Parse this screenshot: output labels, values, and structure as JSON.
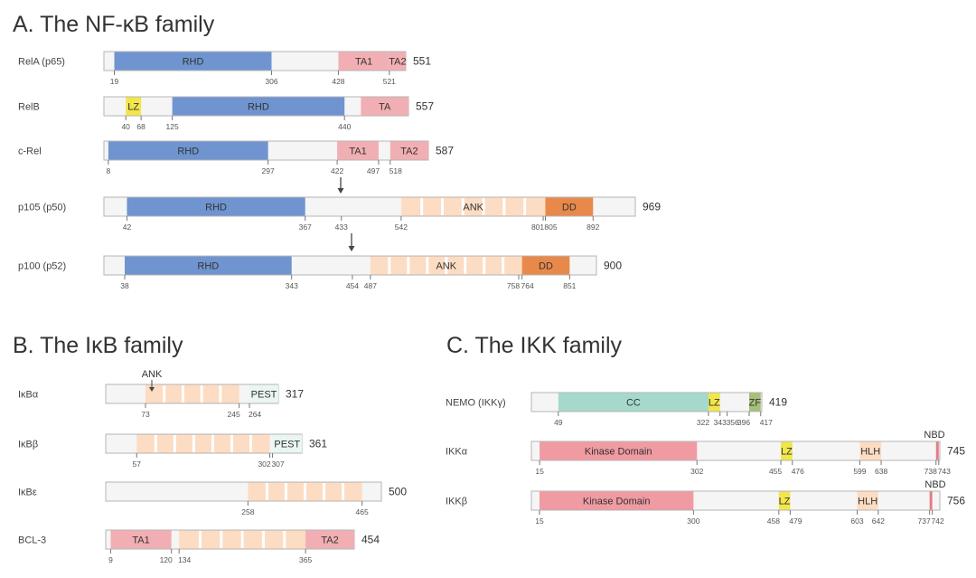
{
  "titles": {
    "a": "A. The NF-κB family",
    "b": "B. The IκB family",
    "c": "C. The IKK family"
  },
  "colors": {
    "rhd": "#6f94d0",
    "ta": "#f2afb3",
    "lz": "#f1e64a",
    "ank": "#fcdcc3",
    "dd": "#e8894b",
    "pest": "#e9f6f1",
    "cc": "#a5d9cc",
    "zf": "#a5c079",
    "kinase": "#f09aa2",
    "hlh": "#fcdcc3",
    "nbd": "#e47d86",
    "body": "#f5f5f5"
  },
  "proteins": [
    {
      "name": "RelA (p65)",
      "length": 551,
      "domains": [
        {
          "type": "rhd",
          "start": 19,
          "end": 306,
          "label": "RHD"
        },
        {
          "type": "ta",
          "start": 428,
          "end": 521,
          "label": "TA1"
        },
        {
          "type": "ta",
          "start": 521,
          "end": 551,
          "label": "TA2"
        }
      ],
      "ticks": [
        "19",
        "306",
        "428",
        "521"
      ]
    },
    {
      "name": "RelB",
      "length": 557,
      "domains": [
        {
          "type": "lz",
          "start": 40,
          "end": 68,
          "label": "LZ"
        },
        {
          "type": "rhd",
          "start": 125,
          "end": 440,
          "label": "RHD"
        },
        {
          "type": "ta",
          "start": 470,
          "end": 557,
          "label": "TA"
        }
      ],
      "ticks": [
        "40",
        "68",
        "125",
        "440"
      ]
    },
    {
      "name": "c-Rel",
      "length": 587,
      "domains": [
        {
          "type": "rhd",
          "start": 8,
          "end": 297,
          "label": "RHD"
        },
        {
          "type": "ta",
          "start": 422,
          "end": 497,
          "label": "TA1"
        },
        {
          "type": "ta",
          "start": 518,
          "end": 587,
          "label": "TA2"
        }
      ],
      "ticks": [
        "8",
        "297",
        "422",
        "497",
        "518"
      ]
    },
    {
      "name": "p105 (p50)",
      "length": 969,
      "domains": [
        {
          "type": "rhd",
          "start": 42,
          "end": 367,
          "label": "RHD"
        },
        {
          "type": "ank",
          "start": 542,
          "end": 805,
          "label": "ANK"
        },
        {
          "type": "dd",
          "start": 805,
          "end": 892,
          "label": "DD"
        }
      ],
      "ticks": [
        "42",
        "367",
        "433",
        "542",
        "801",
        "805",
        "892"
      ]
    },
    {
      "name": "p100 (p52)",
      "length": 900,
      "domains": [
        {
          "type": "rhd",
          "start": 38,
          "end": 343,
          "label": "RHD"
        },
        {
          "type": "ank",
          "start": 487,
          "end": 764,
          "label": "ANK"
        },
        {
          "type": "dd",
          "start": 764,
          "end": 851,
          "label": "DD"
        }
      ],
      "ticks": [
        "38",
        "343",
        "454",
        "487",
        "758",
        "764",
        "851"
      ]
    },
    {
      "name": "IκBα",
      "length": 317,
      "domains": [
        {
          "type": "ank",
          "start": 73,
          "end": 245,
          "label": ""
        },
        {
          "type": "pest",
          "start": 264,
          "end": 317,
          "label": "PEST"
        }
      ],
      "ticks": [
        "73",
        "245",
        "264"
      ]
    },
    {
      "name": "IκBβ",
      "length": 361,
      "domains": [
        {
          "type": "ank",
          "start": 57,
          "end": 302,
          "label": ""
        },
        {
          "type": "pest",
          "start": 307,
          "end": 361,
          "label": "PEST"
        }
      ],
      "ticks": [
        "57",
        "302",
        "307"
      ]
    },
    {
      "name": "IκBε",
      "length": 500,
      "domains": [
        {
          "type": "ank",
          "start": 258,
          "end": 465,
          "label": ""
        }
      ],
      "ticks": [
        "258",
        "465"
      ]
    },
    {
      "name": "BCL-3",
      "length": 454,
      "domains": [
        {
          "type": "ta",
          "start": 9,
          "end": 120,
          "label": "TA1"
        },
        {
          "type": "ank",
          "start": 134,
          "end": 365,
          "label": ""
        },
        {
          "type": "ta",
          "start": 365,
          "end": 454,
          "label": "TA2"
        }
      ],
      "ticks": [
        "9",
        "120",
        "134",
        "365"
      ]
    },
    {
      "name": "NEMO (IKKγ)",
      "length": 419,
      "domains": [
        {
          "type": "cc",
          "start": 49,
          "end": 322,
          "label": "CC"
        },
        {
          "type": "lz",
          "start": 322,
          "end": 343,
          "label": "LZ"
        },
        {
          "type": "zf",
          "start": 396,
          "end": 417,
          "label": "ZF"
        }
      ],
      "ticks": [
        "49",
        "322",
        "343",
        "356",
        "396",
        "417"
      ]
    },
    {
      "name": "IKKα",
      "length": 745,
      "domains": [
        {
          "type": "kinase",
          "start": 15,
          "end": 302,
          "label": "Kinase Domain"
        },
        {
          "type": "lz",
          "start": 455,
          "end": 476,
          "label": "LZ"
        },
        {
          "type": "hlh",
          "start": 599,
          "end": 638,
          "label": "HLH"
        },
        {
          "type": "nbd",
          "start": 738,
          "end": 743,
          "label": ""
        }
      ],
      "ticks": [
        "15",
        "302",
        "455",
        "476",
        "599",
        "638",
        "738",
        "743"
      ]
    },
    {
      "name": "IKKβ",
      "length": 756,
      "domains": [
        {
          "type": "kinase",
          "start": 15,
          "end": 300,
          "label": "Kinase Domain"
        },
        {
          "type": "lz",
          "start": 458,
          "end": 479,
          "label": "LZ"
        },
        {
          "type": "hlh",
          "start": 603,
          "end": 642,
          "label": "HLH"
        },
        {
          "type": "nbd",
          "start": 737,
          "end": 742,
          "label": ""
        }
      ],
      "ticks": [
        "15",
        "300",
        "458",
        "479",
        "603",
        "642",
        "737",
        "742"
      ]
    }
  ],
  "callouts": {
    "ikba_ank": "ANK",
    "ikka_nbd": "NBD",
    "ikkb_nbd": "NBD"
  }
}
